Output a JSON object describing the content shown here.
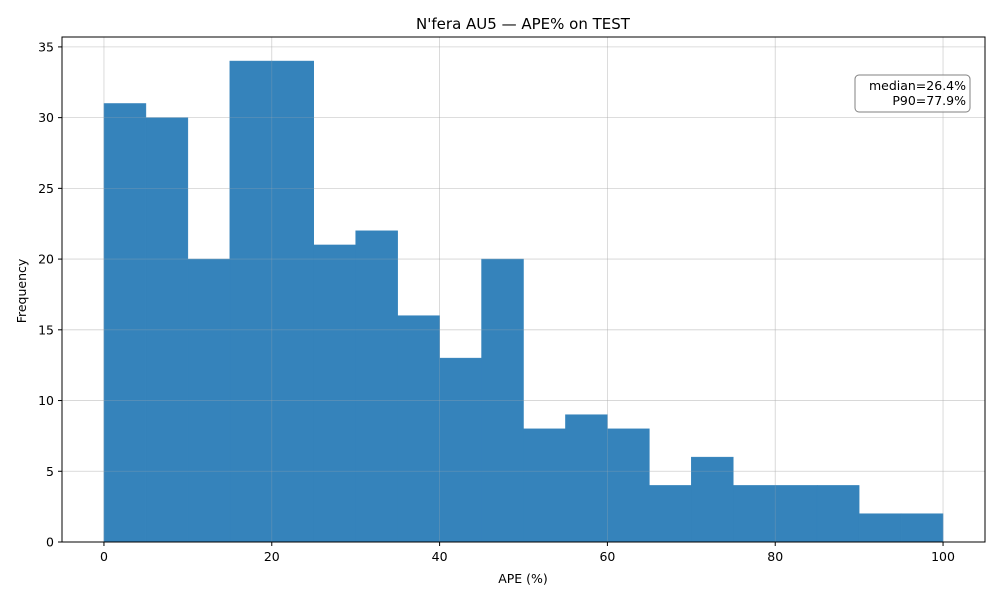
{
  "chart_data": {
    "type": "bar",
    "title": "N'fera AU5 — APE% on TEST",
    "xlabel": "APE (%)",
    "ylabel": "Frequency",
    "xlim": [
      -5,
      105
    ],
    "ylim": [
      0,
      35.7
    ],
    "xticks": [
      0,
      20,
      40,
      60,
      80,
      100
    ],
    "yticks": [
      0,
      5,
      10,
      15,
      20,
      25,
      30,
      35
    ],
    "bin_width": 5,
    "bin_edges": [
      0,
      5,
      10,
      15,
      20,
      25,
      30,
      35,
      40,
      45,
      50,
      55,
      60,
      65,
      70,
      75,
      80,
      85,
      90,
      95,
      100
    ],
    "values": [
      31,
      30,
      20,
      34,
      34,
      21,
      22,
      16,
      13,
      20,
      8,
      9,
      8,
      4,
      6,
      4,
      4,
      4,
      2,
      2
    ],
    "grid": true,
    "bar_color": "#3583bb",
    "annotation": {
      "lines": [
        "median=26.4%",
        "P90=77.9%"
      ],
      "position": "top-right"
    }
  }
}
